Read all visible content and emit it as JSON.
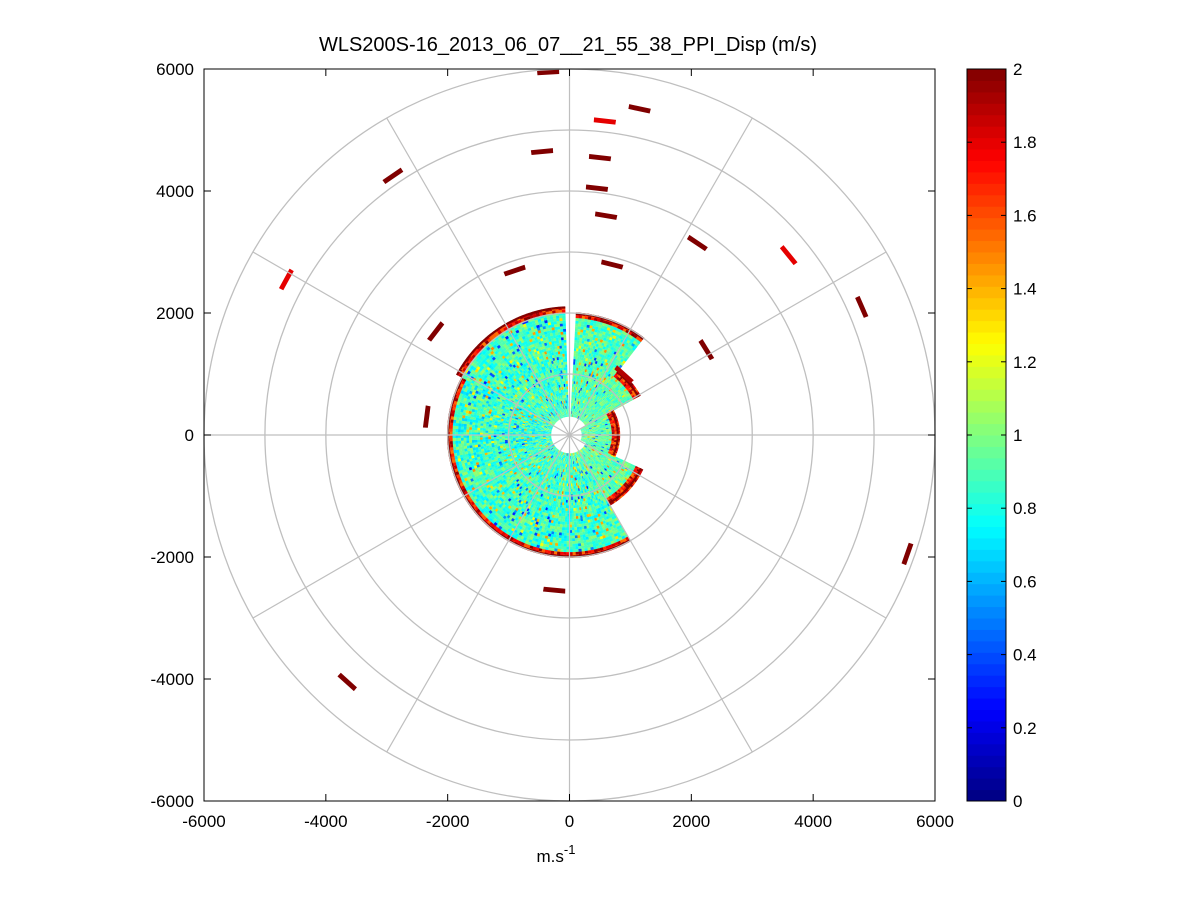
{
  "chart_data": {
    "type": "heatmap",
    "subtype": "polar-ppi",
    "title": "WLS200S-16_2013_06_07__21_55_38_PPI_Disp (m/s)",
    "xlabel": "m.s",
    "xlabel_superscript": "-1",
    "ylabel": "",
    "xlim": [
      -6000,
      6000
    ],
    "ylim": [
      -6000,
      6000
    ],
    "x_ticks": [
      "-6000",
      "-4000",
      "-2000",
      "0",
      "2000",
      "4000",
      "6000"
    ],
    "y_ticks": [
      "6000",
      "4000",
      "2000",
      "0",
      "-2000",
      "-4000",
      "-6000"
    ],
    "polar_grid": {
      "range_rings_m": [
        1000,
        2000,
        3000,
        4000,
        5000,
        6000
      ],
      "spoke_angles_deg": [
        0,
        30,
        60,
        90,
        120,
        150,
        180,
        210,
        240,
        270,
        300,
        330
      ],
      "grid": true
    },
    "colorbar": {
      "colormap": "jet",
      "min": 0,
      "max": 2,
      "tick_labels": [
        "2",
        "1.8",
        "1.6",
        "1.4",
        "1.2",
        "1",
        "0.8",
        "0.6",
        "0.4",
        "0.2",
        "0"
      ]
    },
    "data_regions": [
      {
        "az_start_deg": 3,
        "az_end_deg": 37,
        "r_min_m": 300,
        "r_max_m": 2000,
        "value_range": [
          0.75,
          1.05
        ]
      },
      {
        "az_start_deg": 37,
        "az_end_deg": 60,
        "r_min_m": 300,
        "r_max_m": 1300,
        "value_range": [
          0.8,
          1.05
        ]
      },
      {
        "az_start_deg": 60,
        "az_end_deg": 115,
        "r_min_m": 200,
        "r_max_m": 800,
        "value_range": [
          0.8,
          1.05
        ]
      },
      {
        "az_start_deg": 115,
        "az_end_deg": 150,
        "r_min_m": 300,
        "r_max_m": 1300,
        "value_range": [
          0.8,
          1.05
        ]
      },
      {
        "az_start_deg": 150,
        "az_end_deg": 255,
        "r_min_m": 300,
        "r_max_m": 2000,
        "value_range": [
          0.7,
          1.05
        ]
      },
      {
        "az_start_deg": 255,
        "az_end_deg": 298,
        "r_min_m": 300,
        "r_max_m": 2000,
        "value_range": [
          0.65,
          1.05
        ]
      },
      {
        "az_start_deg": 298,
        "az_end_deg": 357,
        "r_min_m": 300,
        "r_max_m": 2100,
        "value_range": [
          0.7,
          1.05
        ]
      }
    ],
    "edge_value": 2.0,
    "scattered_segments": [
      {
        "x": -350,
        "y": 5950,
        "value": 2.0
      },
      {
        "x": 1150,
        "y": 5350,
        "value": 2.0
      },
      {
        "x": 580,
        "y": 5150,
        "value": 1.8
      },
      {
        "x": -450,
        "y": 4650,
        "value": 2.0
      },
      {
        "x": 500,
        "y": 4550,
        "value": 2.0
      },
      {
        "x": -2900,
        "y": 4250,
        "value": 2.0
      },
      {
        "x": 450,
        "y": 4050,
        "value": 2.0
      },
      {
        "x": 600,
        "y": 3600,
        "value": 2.0
      },
      {
        "x": 2100,
        "y": 3150,
        "value": 2.0
      },
      {
        "x": 3600,
        "y": 2950,
        "value": 1.8
      },
      {
        "x": -4650,
        "y": 2550,
        "value": 1.8
      },
      {
        "x": 4800,
        "y": 2100,
        "value": 2.0
      },
      {
        "x": -900,
        "y": 2700,
        "value": 2.0
      },
      {
        "x": 700,
        "y": 2800,
        "value": 2.0
      },
      {
        "x": 2250,
        "y": 1400,
        "value": 2.0
      },
      {
        "x": -2200,
        "y": 1700,
        "value": 2.0
      },
      {
        "x": -2350,
        "y": 300,
        "value": 2.0
      },
      {
        "x": 5550,
        "y": -1950,
        "value": 2.0
      },
      {
        "x": -3650,
        "y": -4050,
        "value": 2.0
      },
      {
        "x": -250,
        "y": -2550,
        "value": 2.0
      },
      {
        "x": 900,
        "y": 1000,
        "value": 1.9
      }
    ]
  }
}
